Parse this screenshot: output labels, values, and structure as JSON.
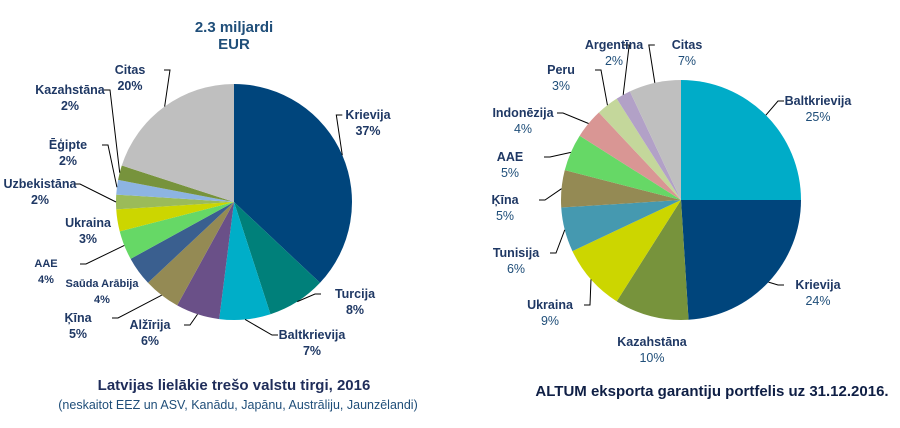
{
  "chart_data": [
    {
      "type": "pie",
      "title": "2.3 miljardi EUR",
      "title_lines": [
        "2.3 miljardi",
        "EUR"
      ],
      "caption": "Latvijas lielākie trešo valstu tirgi, 2016",
      "subcaption": "(neskaitot EEZ un ASV, Kanādu, Japānu, Austrāliju, Jaunzēlandi)",
      "slices": [
        {
          "label": "Krievija",
          "value": 37,
          "text": "37%",
          "color": "#00457c"
        },
        {
          "label": "Turcija",
          "value": 8,
          "text": "8%",
          "color": "#00807a"
        },
        {
          "label": "Baltkrievija",
          "value": 7,
          "text": "7%",
          "color": "#00aec8"
        },
        {
          "label": "Alžīrija",
          "value": 6,
          "text": "6%",
          "color": "#6a5088"
        },
        {
          "label": "Ķīna",
          "value": 5,
          "text": "5%",
          "color": "#948a54"
        },
        {
          "label": "Saūda Arābija",
          "value": 4,
          "text": "4%",
          "color": "#3a5f8f"
        },
        {
          "label": "AAE",
          "value": 4,
          "text": "4%",
          "color": "#66d866"
        },
        {
          "label": "Ukraina",
          "value": 3,
          "text": "3%",
          "color": "#ccd600"
        },
        {
          "label": "Uzbekistāna",
          "value": 2,
          "text": "2%",
          "color": "#9bbb59"
        },
        {
          "label": "Ēģipte",
          "value": 2,
          "text": "2%",
          "color": "#8db4e2"
        },
        {
          "label": "Kazahstāna",
          "value": 2,
          "text": "2%",
          "color": "#77933c"
        },
        {
          "label": "Citas",
          "value": 20,
          "text": "20%",
          "color": "#bfbfbf"
        }
      ]
    },
    {
      "type": "pie",
      "caption": "ALTUM eksporta garantiju portfelis uz 31.12.2016.",
      "slices": [
        {
          "label": "Baltkrievija",
          "value": 25,
          "text": "25%",
          "color": "#00acc8"
        },
        {
          "label": "Krievija",
          "value": 24,
          "text": "24%",
          "color": "#00457c"
        },
        {
          "label": "Kazahstāna",
          "value": 10,
          "text": "10%",
          "color": "#77933c"
        },
        {
          "label": "Ukraina",
          "value": 9,
          "text": "9%",
          "color": "#ccd600"
        },
        {
          "label": "Tunisija",
          "value": 6,
          "text": "6%",
          "color": "#4599b0"
        },
        {
          "label": "Ķīna",
          "value": 5,
          "text": "5%",
          "color": "#948a54"
        },
        {
          "label": "AAE",
          "value": 5,
          "text": "5%",
          "color": "#66d866"
        },
        {
          "label": "Indonēzija",
          "value": 4,
          "text": "4%",
          "color": "#d99694"
        },
        {
          "label": "Peru",
          "value": 3,
          "text": "3%",
          "color": "#c4d79b"
        },
        {
          "label": "Argentīna",
          "value": 2,
          "text": "2%",
          "color": "#b2a1c7"
        },
        {
          "label": "Citas",
          "value": 7,
          "text": "7%",
          "color": "#bfbfbf"
        }
      ]
    }
  ]
}
